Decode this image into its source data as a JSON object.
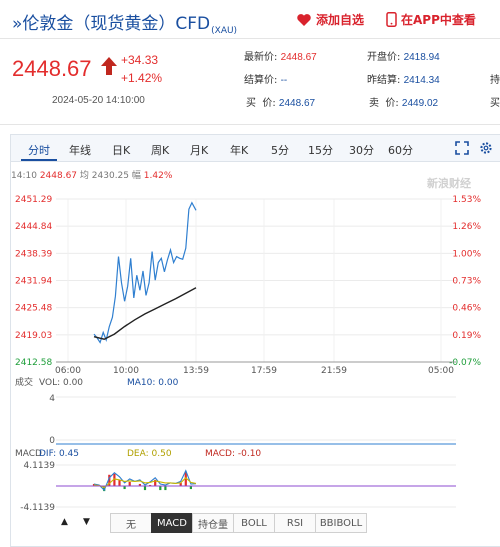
{
  "header": {
    "title": "»伦敦金（现货黄金）CFD",
    "symbol": "(XAU)",
    "add_watchlist": "添加自选",
    "open_app": "在APP中查看"
  },
  "quote": {
    "price": "2448.67",
    "change": "+34.33",
    "change_pct": "+1.42%",
    "datetime": "2024-05-20 14:10:00",
    "fields": [
      {
        "label": "最新价:",
        "value": "2448.67",
        "red": true
      },
      {
        "label": "开盘价:",
        "value": "2418.94"
      },
      {
        "label": "结算价:",
        "value": "--"
      },
      {
        "label": "昨结算:",
        "value": "2414.34"
      },
      {
        "label": "买  价:",
        "value": "2448.67"
      },
      {
        "label": "卖  价:",
        "value": "2449.02"
      },
      {
        "label": "持",
        "value": ""
      },
      {
        "label": "买",
        "value": ""
      }
    ]
  },
  "tabs": [
    "分时",
    "年线",
    "日K",
    "周K",
    "月K",
    "年K",
    "5分",
    "15分",
    "30分",
    "60分"
  ],
  "active_tab": "分时",
  "info_bar": {
    "time": "14:10",
    "price": "2448.67",
    "avg_label": "均",
    "avg": "2430.25",
    "pct_label": "幅",
    "pct": "1.42%"
  },
  "watermark": "新浪财经",
  "chart_data": {
    "type": "line",
    "price_ticks": [
      "2451.29",
      "2444.84",
      "2438.39",
      "2431.94",
      "2425.48",
      "2419.03",
      "2412.58"
    ],
    "pct_ticks": [
      "1.53%",
      "1.26%",
      "1.00%",
      "0.73%",
      "0.46%",
      "0.19%",
      "-0.07%"
    ],
    "x_ticks": [
      "06:00",
      "10:00",
      "13:59",
      "17:59",
      "21:59",
      "05:00"
    ],
    "ylim": [
      2412.58,
      2451.29
    ],
    "series": [
      {
        "color": "#2f7fd0",
        "x": [
          0,
          0.03,
          0.06,
          0.09,
          0.12,
          0.15,
          0.18,
          0.21,
          0.24,
          0.27,
          0.3,
          0.33,
          0.36,
          0.39,
          0.42,
          0.45,
          0.48,
          0.51,
          0.54,
          0.57,
          0.6,
          0.63,
          0.66,
          0.69,
          0.72,
          0.75,
          0.78,
          0.81,
          0.84,
          0.87,
          0.9,
          0.93,
          0.96,
          1.0
        ],
        "y": [
          2419.2,
          2418.3,
          2417.2,
          2419.6,
          2417.8,
          2421.0,
          2423.2,
          2428.2,
          2437.6,
          2431.4,
          2427.0,
          2430.6,
          2437.2,
          2427.8,
          2433.2,
          2429.6,
          2434.2,
          2428.4,
          2431.4,
          2438.8,
          2432.0,
          2436.2,
          2437.2,
          2434.0,
          2436.8,
          2439.2,
          2436.2,
          2437.6,
          2437.2,
          2437.0,
          2439.6,
          2448.9,
          2450.4,
          2448.6
        ]
      },
      {
        "color": "#222222",
        "x": [
          0,
          0.1,
          0.2,
          0.3,
          0.4,
          0.5,
          0.6,
          0.7,
          0.8,
          0.9,
          1.0
        ],
        "y": [
          2418.6,
          2418.0,
          2419.2,
          2421.0,
          2422.6,
          2424.0,
          2425.2,
          2426.4,
          2427.6,
          2428.9,
          2430.2
        ]
      }
    ],
    "volume": {
      "label": "成交",
      "vol_label": "VOL: 0.00",
      "ma_label": "MA10: 0.00",
      "ticks": [
        "4",
        "0"
      ]
    },
    "macd": {
      "label": "MACD",
      "dif_label": "DIF: 0.45",
      "dea_label": "DEA: 0.50",
      "macd_label": "MACD: -0.10",
      "ticks": [
        "4.1139",
        "-4.1139"
      ],
      "ylim": [
        -4.1139,
        4.1139
      ],
      "x": [
        0,
        0.05,
        0.1,
        0.15,
        0.2,
        0.25,
        0.3,
        0.35,
        0.4,
        0.45,
        0.5,
        0.55,
        0.6,
        0.65,
        0.7,
        0.75,
        0.8,
        0.85,
        0.9,
        0.95,
        1.0
      ],
      "dif": [
        0.4,
        0.2,
        -0.8,
        1.6,
        2.6,
        1.8,
        0.6,
        1.4,
        0.9,
        1.2,
        0.2,
        0.8,
        1.6,
        0.4,
        0.2,
        0.6,
        0.5,
        0.9,
        3.0,
        0.4,
        0.45
      ],
      "dea": [
        0.2,
        0.1,
        -0.3,
        0.5,
        1.4,
        1.2,
        0.9,
        1.0,
        0.9,
        1.0,
        0.6,
        0.7,
        1.0,
        0.8,
        0.6,
        0.6,
        0.5,
        0.6,
        1.6,
        0.7,
        0.5
      ],
      "hist": [
        0.4,
        0.2,
        -1.0,
        2.2,
        2.4,
        1.2,
        -0.6,
        0.8,
        0.0,
        0.4,
        -0.8,
        0.2,
        1.2,
        -0.8,
        -0.8,
        0.0,
        0.0,
        0.6,
        2.8,
        -0.6,
        -0.1
      ]
    }
  },
  "bottom_buttons": [
    "无",
    "MACD",
    "持仓量",
    "BOLL",
    "RSI",
    "BBIBOLL"
  ],
  "active_indicator": "MACD",
  "colors": {
    "up": "#e32d2d",
    "down": "#1e9e3a",
    "accent": "#1a4fa0"
  }
}
